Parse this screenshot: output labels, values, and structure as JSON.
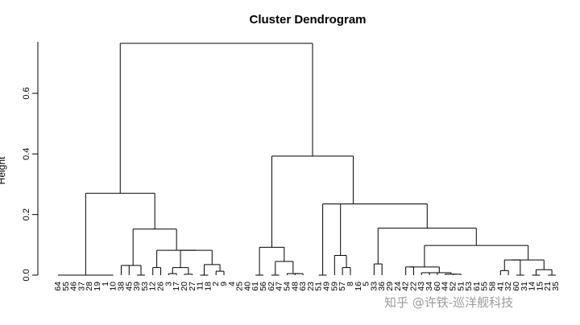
{
  "chart_data": {
    "type": "dendrogram",
    "title": "Cluster Dendrogram",
    "ylabel": "Height",
    "ylim": [
      0,
      0.77
    ],
    "yticks": [
      "0.0",
      "0.2",
      "0.4",
      "0.6"
    ],
    "ytick_values": [
      0,
      0.2,
      0.4,
      0.6
    ],
    "leaves": [
      "64",
      "55",
      "46",
      "37",
      "28",
      "19",
      "1",
      "10",
      "38",
      "45",
      "39",
      "53",
      "12",
      "26",
      "3",
      "17",
      "20",
      "27",
      "11",
      "18",
      "2",
      "9",
      "4",
      "25",
      "40",
      "61",
      "56",
      "62",
      "47",
      "54",
      "48",
      "63",
      "23",
      "51",
      "49",
      "59",
      "57",
      "8",
      "16",
      "5",
      "33",
      "36",
      "29",
      "24",
      "42",
      "22",
      "43",
      "34",
      "60",
      "44",
      "52",
      "51",
      "53",
      "61",
      "55",
      "58",
      "41",
      "32",
      "60",
      "31",
      "14",
      "15",
      "21",
      "35"
    ],
    "merges": [
      {
        "height": 0.032,
        "leaves": [
          "38",
          "45"
        ]
      },
      {
        "height": 0.025,
        "leaves": [
          "12",
          "26"
        ]
      },
      {
        "height": 0.005,
        "leaves": [
          "3",
          "17"
        ]
      },
      {
        "height": 0.003,
        "leaves": [
          "20",
          "27"
        ]
      },
      {
        "height": 0.025,
        "leaves": [
          "3",
          "17",
          "20",
          "27"
        ]
      },
      {
        "height": 0.013,
        "leaves": [
          "2",
          "9"
        ]
      },
      {
        "height": 0.035,
        "leaves": [
          "11",
          "18",
          "2",
          "9"
        ]
      },
      {
        "height": 0.082,
        "leaves": [
          "3",
          "17",
          "20",
          "27",
          "11",
          "18",
          "2",
          "9"
        ]
      },
      {
        "height": 0.152,
        "leaves": [
          "38",
          "45",
          "12",
          "26",
          "3",
          "17",
          "20",
          "27",
          "11",
          "18",
          "2",
          "9"
        ]
      },
      {
        "height": 0.27,
        "leaves": [
          "64",
          "55",
          "46",
          "37",
          "28",
          "19",
          "1",
          "10",
          "38",
          "45",
          "12",
          "26",
          "3",
          "17",
          "20",
          "27",
          "11",
          "18",
          "2",
          "9"
        ]
      },
      {
        "height": 0.005,
        "leaves": [
          "48",
          "63"
        ]
      },
      {
        "height": 0.045,
        "leaves": [
          "62",
          "47",
          "54",
          "48",
          "63"
        ]
      },
      {
        "height": 0.092,
        "leaves": [
          "61",
          "56",
          "62",
          "47",
          "54",
          "48",
          "63"
        ]
      },
      {
        "height": 0.025,
        "leaves": [
          "59",
          "57"
        ]
      },
      {
        "height": 0.065,
        "leaves": [
          "49",
          "59",
          "57"
        ]
      },
      {
        "height": 0.037,
        "leaves": [
          "33",
          "36"
        ]
      },
      {
        "height": 0.027,
        "leaves": [
          "42",
          "22"
        ]
      },
      {
        "height": 0.008,
        "leaves": [
          "34",
          "60"
        ]
      },
      {
        "height": 0.003,
        "leaves": [
          "52",
          "51"
        ]
      },
      {
        "height": 0.015,
        "leaves": [
          "41",
          "32"
        ]
      },
      {
        "height": 0.05,
        "leaves": [
          "41",
          "32",
          "60",
          "31"
        ]
      },
      {
        "height": 0.018,
        "leaves": [
          "14",
          "15",
          "21",
          "35"
        ]
      },
      {
        "height": 0.098,
        "leaves": [
          "42",
          "22",
          "43",
          "34",
          "60",
          "44",
          "52",
          "51",
          "53",
          "61",
          "55",
          "58",
          "41",
          "32",
          "60",
          "31",
          "14",
          "15",
          "21",
          "35"
        ]
      },
      {
        "height": 0.155,
        "leaves": [
          "33",
          "36",
          "42",
          "22",
          "43",
          "34",
          "60",
          "44",
          "52",
          "51",
          "53",
          "61",
          "55",
          "58",
          "41",
          "32",
          "60",
          "31",
          "14",
          "15",
          "21",
          "35"
        ]
      },
      {
        "height": 0.235,
        "leaves": [
          "49",
          "59",
          "57",
          "8",
          "16",
          "5",
          "33",
          "36",
          "42",
          "22",
          "43",
          "34",
          "60",
          "44",
          "52",
          "51",
          "53",
          "61",
          "55",
          "58",
          "41",
          "32",
          "60",
          "31",
          "14",
          "15",
          "21",
          "35"
        ]
      },
      {
        "height": 0.393,
        "leaves": [
          "61",
          "56",
          "62",
          "47",
          "54",
          "48",
          "63",
          "23",
          "51",
          "49",
          "59",
          "57",
          "8",
          "16",
          "5",
          "33",
          "36",
          "42",
          "22",
          "43",
          "34",
          "60",
          "44",
          "52",
          "51",
          "53",
          "61",
          "55",
          "58",
          "41",
          "32",
          "60",
          "31",
          "14",
          "15",
          "21",
          "35"
        ]
      },
      {
        "height": 0.765,
        "leaves": [
          "all"
        ]
      }
    ]
  },
  "watermark": "知乎 @许铁-巡洋舰科技"
}
